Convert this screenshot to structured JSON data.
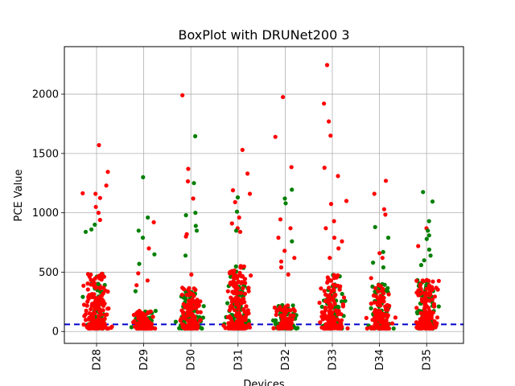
{
  "chart_data": {
    "type": "scatter",
    "title": "BoxPlot with DRUNet200 3",
    "xlabel": "Devices",
    "ylabel": "PCE Value",
    "categories": [
      "D28",
      "D29",
      "D30",
      "D31",
      "D32",
      "D33",
      "D34",
      "D35"
    ],
    "ylim": [
      -100,
      2400
    ],
    "yticks": [
      0,
      500,
      1000,
      1500,
      2000
    ],
    "grid": true,
    "threshold": {
      "value": 60,
      "color": "#0000cc",
      "style": "dashed"
    },
    "series": [
      {
        "color": "#ff0000",
        "points_per_category": [
          180,
          70,
          120,
          180,
          70,
          150,
          110,
          150
        ]
      },
      {
        "color": "#008000",
        "points_per_category": [
          60,
          70,
          110,
          100,
          90,
          90,
          90,
          80
        ]
      }
    ],
    "outliers": [
      {
        "cat": 0,
        "v": 1570,
        "c": "r"
      },
      {
        "cat": 0,
        "v": 1345,
        "c": "r"
      },
      {
        "cat": 0,
        "v": 1230,
        "c": "r"
      },
      {
        "cat": 0,
        "v": 1165,
        "c": "r"
      },
      {
        "cat": 0,
        "v": 1160,
        "c": "r"
      },
      {
        "cat": 0,
        "v": 1125,
        "c": "r"
      },
      {
        "cat": 0,
        "v": 1050,
        "c": "r"
      },
      {
        "cat": 0,
        "v": 1000,
        "c": "r"
      },
      {
        "cat": 0,
        "v": 940,
        "c": "r"
      },
      {
        "cat": 0,
        "v": 900,
        "c": "g"
      },
      {
        "cat": 0,
        "v": 860,
        "c": "g"
      },
      {
        "cat": 0,
        "v": 840,
        "c": "g"
      },
      {
        "cat": 0,
        "v": 400,
        "c": "g"
      },
      {
        "cat": 1,
        "v": 1300,
        "c": "g"
      },
      {
        "cat": 1,
        "v": 960,
        "c": "g"
      },
      {
        "cat": 1,
        "v": 920,
        "c": "r"
      },
      {
        "cat": 1,
        "v": 850,
        "c": "g"
      },
      {
        "cat": 1,
        "v": 790,
        "c": "g"
      },
      {
        "cat": 1,
        "v": 700,
        "c": "r"
      },
      {
        "cat": 1,
        "v": 650,
        "c": "g"
      },
      {
        "cat": 1,
        "v": 570,
        "c": "g"
      },
      {
        "cat": 1,
        "v": 490,
        "c": "r"
      },
      {
        "cat": 1,
        "v": 430,
        "c": "r"
      },
      {
        "cat": 1,
        "v": 390,
        "c": "r"
      },
      {
        "cat": 1,
        "v": 340,
        "c": "g"
      },
      {
        "cat": 2,
        "v": 1990,
        "c": "r"
      },
      {
        "cat": 2,
        "v": 1645,
        "c": "g"
      },
      {
        "cat": 2,
        "v": 1370,
        "c": "r"
      },
      {
        "cat": 2,
        "v": 1265,
        "c": "r"
      },
      {
        "cat": 2,
        "v": 1250,
        "c": "g"
      },
      {
        "cat": 2,
        "v": 1120,
        "c": "r"
      },
      {
        "cat": 2,
        "v": 1000,
        "c": "g"
      },
      {
        "cat": 2,
        "v": 980,
        "c": "g"
      },
      {
        "cat": 2,
        "v": 890,
        "c": "g"
      },
      {
        "cat": 2,
        "v": 850,
        "c": "g"
      },
      {
        "cat": 2,
        "v": 820,
        "c": "r"
      },
      {
        "cat": 2,
        "v": 800,
        "c": "r"
      },
      {
        "cat": 2,
        "v": 640,
        "c": "g"
      },
      {
        "cat": 2,
        "v": 480,
        "c": "r"
      },
      {
        "cat": 3,
        "v": 1530,
        "c": "r"
      },
      {
        "cat": 3,
        "v": 1330,
        "c": "r"
      },
      {
        "cat": 3,
        "v": 1190,
        "c": "r"
      },
      {
        "cat": 3,
        "v": 1160,
        "c": "r"
      },
      {
        "cat": 3,
        "v": 1130,
        "c": "g"
      },
      {
        "cat": 3,
        "v": 1090,
        "c": "r"
      },
      {
        "cat": 3,
        "v": 1010,
        "c": "g"
      },
      {
        "cat": 3,
        "v": 960,
        "c": "r"
      },
      {
        "cat": 3,
        "v": 910,
        "c": "r"
      },
      {
        "cat": 3,
        "v": 870,
        "c": "r"
      },
      {
        "cat": 3,
        "v": 850,
        "c": "g"
      },
      {
        "cat": 3,
        "v": 840,
        "c": "r"
      },
      {
        "cat": 4,
        "v": 1975,
        "c": "r"
      },
      {
        "cat": 4,
        "v": 1640,
        "c": "r"
      },
      {
        "cat": 4,
        "v": 1385,
        "c": "r"
      },
      {
        "cat": 4,
        "v": 1195,
        "c": "g"
      },
      {
        "cat": 4,
        "v": 1120,
        "c": "g"
      },
      {
        "cat": 4,
        "v": 1080,
        "c": "g"
      },
      {
        "cat": 4,
        "v": 945,
        "c": "r"
      },
      {
        "cat": 4,
        "v": 870,
        "c": "r"
      },
      {
        "cat": 4,
        "v": 790,
        "c": "r"
      },
      {
        "cat": 4,
        "v": 760,
        "c": "g"
      },
      {
        "cat": 4,
        "v": 680,
        "c": "r"
      },
      {
        "cat": 4,
        "v": 620,
        "c": "r"
      },
      {
        "cat": 4,
        "v": 590,
        "c": "r"
      },
      {
        "cat": 4,
        "v": 540,
        "c": "r"
      },
      {
        "cat": 4,
        "v": 480,
        "c": "r"
      },
      {
        "cat": 5,
        "v": 2245,
        "c": "r"
      },
      {
        "cat": 5,
        "v": 1920,
        "c": "r"
      },
      {
        "cat": 5,
        "v": 1770,
        "c": "r"
      },
      {
        "cat": 5,
        "v": 1650,
        "c": "r"
      },
      {
        "cat": 5,
        "v": 1380,
        "c": "r"
      },
      {
        "cat": 5,
        "v": 1310,
        "c": "r"
      },
      {
        "cat": 5,
        "v": 1100,
        "c": "r"
      },
      {
        "cat": 5,
        "v": 1075,
        "c": "r"
      },
      {
        "cat": 5,
        "v": 930,
        "c": "r"
      },
      {
        "cat": 5,
        "v": 870,
        "c": "r"
      },
      {
        "cat": 5,
        "v": 790,
        "c": "r"
      },
      {
        "cat": 5,
        "v": 760,
        "c": "r"
      },
      {
        "cat": 5,
        "v": 700,
        "c": "r"
      },
      {
        "cat": 5,
        "v": 620,
        "c": "r"
      },
      {
        "cat": 6,
        "v": 1270,
        "c": "r"
      },
      {
        "cat": 6,
        "v": 1160,
        "c": "r"
      },
      {
        "cat": 6,
        "v": 1030,
        "c": "r"
      },
      {
        "cat": 6,
        "v": 985,
        "c": "r"
      },
      {
        "cat": 6,
        "v": 880,
        "c": "g"
      },
      {
        "cat": 6,
        "v": 790,
        "c": "g"
      },
      {
        "cat": 6,
        "v": 670,
        "c": "g"
      },
      {
        "cat": 6,
        "v": 660,
        "c": "r"
      },
      {
        "cat": 6,
        "v": 620,
        "c": "r"
      },
      {
        "cat": 6,
        "v": 580,
        "c": "g"
      },
      {
        "cat": 6,
        "v": 540,
        "c": "g"
      },
      {
        "cat": 6,
        "v": 450,
        "c": "r"
      },
      {
        "cat": 7,
        "v": 1175,
        "c": "g"
      },
      {
        "cat": 7,
        "v": 1095,
        "c": "g"
      },
      {
        "cat": 7,
        "v": 930,
        "c": "g"
      },
      {
        "cat": 7,
        "v": 870,
        "c": "r"
      },
      {
        "cat": 7,
        "v": 850,
        "c": "g"
      },
      {
        "cat": 7,
        "v": 810,
        "c": "g"
      },
      {
        "cat": 7,
        "v": 780,
        "c": "g"
      },
      {
        "cat": 7,
        "v": 720,
        "c": "r"
      },
      {
        "cat": 7,
        "v": 690,
        "c": "g"
      },
      {
        "cat": 7,
        "v": 640,
        "c": "g"
      },
      {
        "cat": 7,
        "v": 600,
        "c": "g"
      },
      {
        "cat": 7,
        "v": 560,
        "c": "g"
      }
    ],
    "colors": {
      "r": "#ff0000",
      "g": "#008000",
      "grid": "#b0b0b0"
    }
  }
}
